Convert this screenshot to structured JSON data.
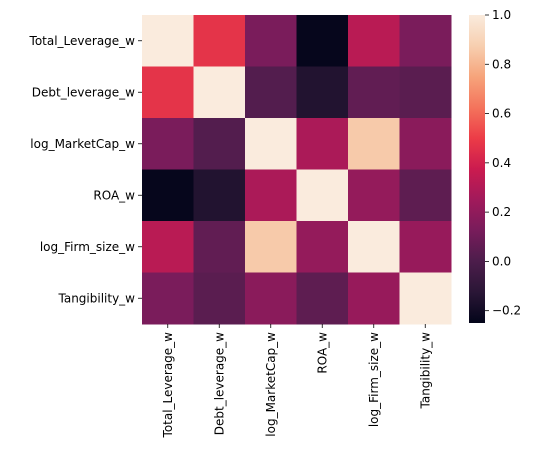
{
  "chart_data": {
    "type": "heatmap",
    "labels": [
      "Total_Leverage_w",
      "Debt_leverage_w",
      "log_MarketCap_w",
      "ROA_w",
      "log_Firm_size_w",
      "Tangibility_w"
    ],
    "values": [
      [
        1.0,
        0.47,
        0.13,
        -0.24,
        0.32,
        0.13
      ],
      [
        0.47,
        1.0,
        0.02,
        -0.15,
        0.06,
        0.04
      ],
      [
        0.13,
        0.02,
        1.0,
        0.28,
        0.86,
        0.18
      ],
      [
        -0.24,
        -0.15,
        0.28,
        1.0,
        0.21,
        0.05
      ],
      [
        0.32,
        0.06,
        0.86,
        0.21,
        1.0,
        0.22
      ],
      [
        0.13,
        0.04,
        0.18,
        0.05,
        0.22,
        1.0
      ]
    ],
    "colorbar": {
      "vmin": -0.25,
      "vmax": 1.0,
      "ticks": [
        "−0.2",
        "0.0",
        "0.2",
        "0.4",
        "0.6",
        "0.8",
        "1.0"
      ],
      "tick_values": [
        -0.2,
        0.0,
        0.2,
        0.4,
        0.6,
        0.8,
        1.0
      ],
      "colormap": "rocket",
      "colormap_stops": [
        "#03051a",
        "#2a1636",
        "#4c1d4b",
        "#781c5b",
        "#a11a5b",
        "#cb1b4f",
        "#ec3c47",
        "#f4745c",
        "#f6a47b",
        "#f7cfb0",
        "#faebdd"
      ]
    },
    "title": "",
    "xlabel": "",
    "ylabel": ""
  }
}
